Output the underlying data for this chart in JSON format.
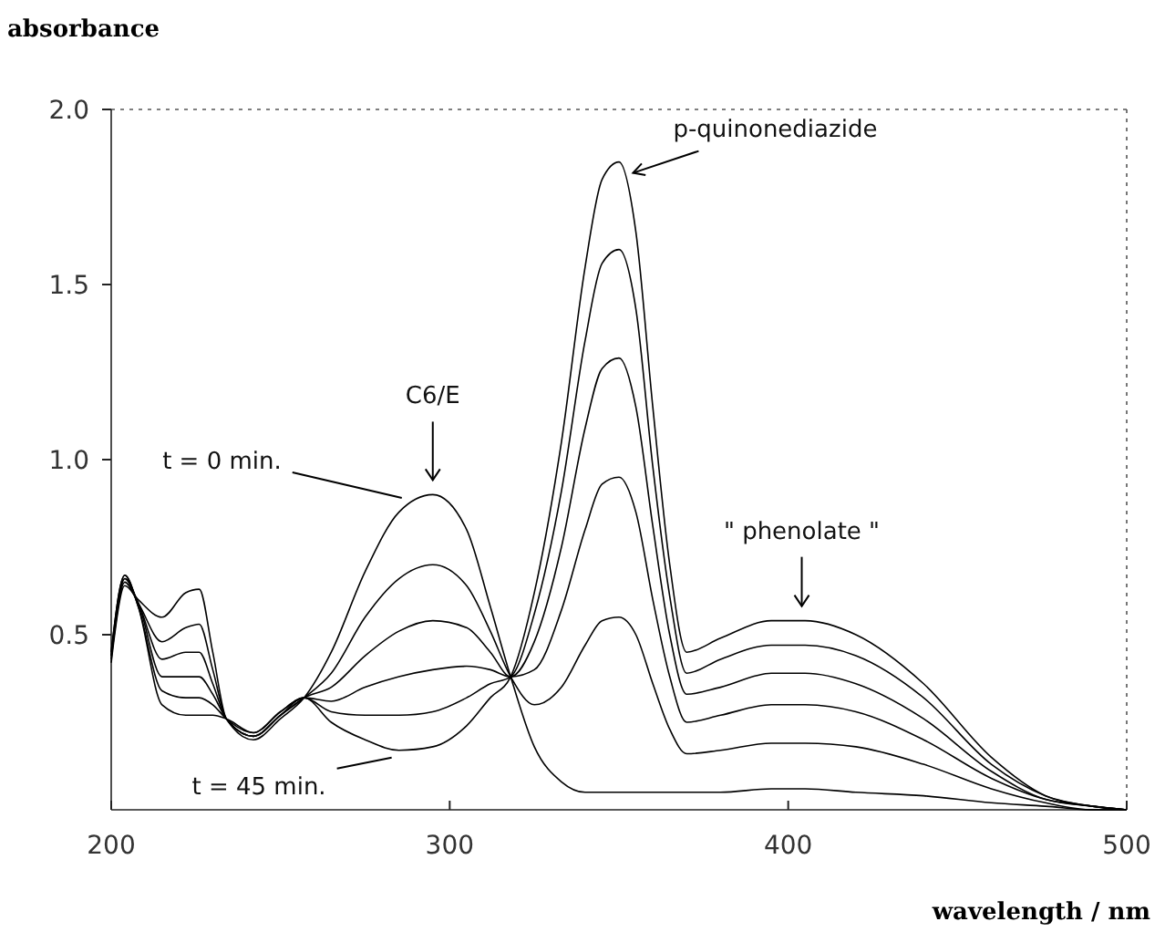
{
  "chart_data": {
    "type": "line",
    "xlabel": "wavelength / nm",
    "ylabel": "absorbance",
    "x": [
      200,
      204,
      208,
      215,
      222,
      226,
      230,
      234,
      242,
      250,
      257,
      265,
      275,
      285,
      295,
      305,
      312,
      318,
      325,
      333,
      340,
      345,
      350,
      355,
      360,
      365,
      370,
      380,
      395,
      405,
      420,
      440,
      460,
      476,
      490,
      500
    ],
    "series": [
      {
        "color": "#000000",
        "values": [
          0.42,
          0.64,
          0.6,
          0.55,
          0.62,
          0.63,
          0.45,
          0.26,
          0.2,
          0.26,
          0.32,
          0.45,
          0.68,
          0.85,
          0.9,
          0.8,
          0.58,
          0.38,
          0.18,
          0.08,
          0.05,
          0.05,
          0.05,
          0.05,
          0.05,
          0.05,
          0.05,
          0.05,
          0.06,
          0.06,
          0.05,
          0.04,
          0.02,
          0.01,
          0,
          0
        ]
      },
      {
        "color": "#000000",
        "values": [
          0.43,
          0.65,
          0.59,
          0.48,
          0.52,
          0.53,
          0.4,
          0.26,
          0.21,
          0.27,
          0.32,
          0.39,
          0.55,
          0.66,
          0.7,
          0.64,
          0.51,
          0.38,
          0.3,
          0.35,
          0.47,
          0.54,
          0.55,
          0.5,
          0.36,
          0.23,
          0.16,
          0.17,
          0.19,
          0.19,
          0.18,
          0.13,
          0.06,
          0.02,
          0,
          0
        ]
      },
      {
        "color": "#000000",
        "values": [
          0.44,
          0.66,
          0.59,
          0.43,
          0.45,
          0.45,
          0.36,
          0.26,
          0.21,
          0.27,
          0.32,
          0.35,
          0.44,
          0.51,
          0.54,
          0.52,
          0.45,
          0.38,
          0.4,
          0.57,
          0.8,
          0.93,
          0.95,
          0.85,
          0.6,
          0.38,
          0.25,
          0.27,
          0.3,
          0.3,
          0.28,
          0.2,
          0.09,
          0.03,
          0.01,
          0
        ]
      },
      {
        "color": "#000000",
        "values": [
          0.44,
          0.66,
          0.59,
          0.38,
          0.38,
          0.38,
          0.33,
          0.26,
          0.21,
          0.27,
          0.32,
          0.31,
          0.35,
          0.38,
          0.4,
          0.41,
          0.4,
          0.38,
          0.48,
          0.75,
          1.09,
          1.26,
          1.29,
          1.15,
          0.81,
          0.5,
          0.33,
          0.35,
          0.39,
          0.39,
          0.36,
          0.26,
          0.11,
          0.03,
          0.01,
          0
        ]
      },
      {
        "color": "#000000",
        "values": [
          0.45,
          0.67,
          0.58,
          0.34,
          0.32,
          0.32,
          0.3,
          0.26,
          0.22,
          0.28,
          0.32,
          0.28,
          0.27,
          0.27,
          0.28,
          0.32,
          0.36,
          0.38,
          0.56,
          0.91,
          1.34,
          1.56,
          1.6,
          1.43,
          0.98,
          0.61,
          0.39,
          0.43,
          0.47,
          0.47,
          0.44,
          0.32,
          0.13,
          0.04,
          0.01,
          0
        ]
      },
      {
        "color": "#000000",
        "values": [
          0.45,
          0.67,
          0.58,
          0.3,
          0.27,
          0.27,
          0.27,
          0.26,
          0.22,
          0.28,
          0.32,
          0.25,
          0.2,
          0.17,
          0.18,
          0.24,
          0.32,
          0.38,
          0.62,
          1.05,
          1.55,
          1.8,
          1.85,
          1.65,
          1.15,
          0.7,
          0.45,
          0.49,
          0.54,
          0.54,
          0.5,
          0.36,
          0.15,
          0.04,
          0.01,
          0
        ]
      }
    ],
    "xlim": [
      200,
      500
    ],
    "xticks": [
      200,
      300,
      400,
      500
    ],
    "ylim": [
      0,
      2.0
    ],
    "yticks": [
      {
        "value": 0.5,
        "label": "0.5"
      },
      {
        "value": 1.0,
        "label": "1.0"
      },
      {
        "value": 1.5,
        "label": "1.5"
      },
      {
        "value": 2.0,
        "label": "2.0"
      }
    ],
    "annotations": [
      {
        "text": "t = 0  min.",
        "x": 288,
        "y": 0.88
      },
      {
        "text": "t = 45 min.",
        "x": 285,
        "y": 0.17
      },
      {
        "text": "C6/E",
        "x": 295,
        "y": 0.9
      },
      {
        "text": "p-quinonediazide",
        "x": 352,
        "y": 1.85
      },
      {
        "text": "\" phenolate \"",
        "x": 404,
        "y": 0.54
      }
    ],
    "grid": false,
    "marker": "none",
    "line_style": "solid"
  }
}
